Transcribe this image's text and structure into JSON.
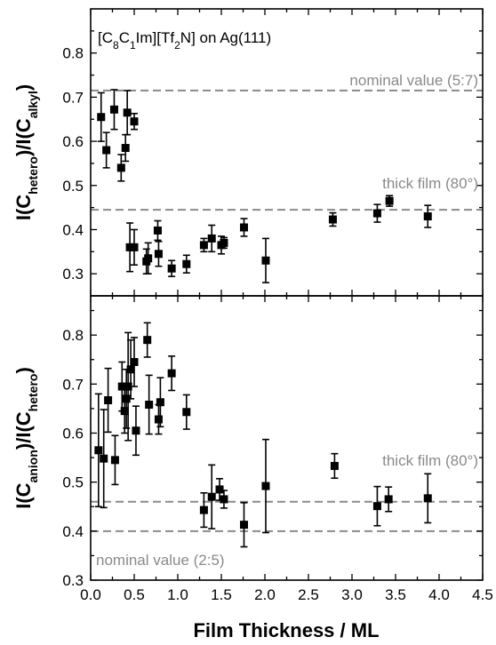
{
  "chart_data": [
    {
      "type": "scatter",
      "title": "[C8C1Im][Tf2N] on Ag(111)",
      "ylabel": {
        "parts": [
          [
            "I(C",
            false
          ],
          [
            "hetero",
            true
          ],
          [
            ")/I(C",
            false
          ],
          [
            "alkyl",
            true
          ],
          [
            ")",
            false
          ]
        ]
      },
      "xlim": [
        0,
        4.5
      ],
      "ylim": [
        0.25,
        0.9
      ],
      "yticks": [
        "0.3",
        "0.4",
        "0.5",
        "0.6",
        "0.7",
        "0.8"
      ],
      "reference_lines": [
        {
          "y": 0.715,
          "label": "nominal value (5:7)"
        },
        {
          "y": 0.445,
          "label": "thick film (80°)"
        }
      ],
      "points": [
        {
          "x": 0.12,
          "y": 0.655,
          "err": 0.055
        },
        {
          "x": 0.18,
          "y": 0.58,
          "err": 0.04
        },
        {
          "x": 0.27,
          "y": 0.672,
          "err": 0.045
        },
        {
          "x": 0.35,
          "y": 0.54,
          "err": 0.03
        },
        {
          "x": 0.4,
          "y": 0.585,
          "err": 0.03
        },
        {
          "x": 0.42,
          "y": 0.665,
          "err": 0.05
        },
        {
          "x": 0.5,
          "y": 0.645,
          "err": 0.018
        },
        {
          "x": 0.45,
          "y": 0.36,
          "err": 0.055
        },
        {
          "x": 0.5,
          "y": 0.36,
          "err": 0.04
        },
        {
          "x": 0.64,
          "y": 0.328,
          "err": 0.028
        },
        {
          "x": 0.66,
          "y": 0.335,
          "err": 0.035
        },
        {
          "x": 0.77,
          "y": 0.398,
          "err": 0.022
        },
        {
          "x": 0.78,
          "y": 0.345,
          "err": 0.028
        },
        {
          "x": 0.93,
          "y": 0.312,
          "err": 0.018
        },
        {
          "x": 1.1,
          "y": 0.322,
          "err": 0.02
        },
        {
          "x": 1.3,
          "y": 0.365,
          "err": 0.015
        },
        {
          "x": 1.39,
          "y": 0.38,
          "err": 0.03
        },
        {
          "x": 1.5,
          "y": 0.365,
          "err": 0.02
        },
        {
          "x": 1.53,
          "y": 0.37,
          "err": 0.012
        },
        {
          "x": 1.76,
          "y": 0.405,
          "err": 0.02
        },
        {
          "x": 2.01,
          "y": 0.33,
          "err": 0.05
        },
        {
          "x": 2.78,
          "y": 0.423,
          "err": 0.015
        },
        {
          "x": 3.29,
          "y": 0.437,
          "err": 0.02
        },
        {
          "x": 3.43,
          "y": 0.465,
          "err": 0.012
        },
        {
          "x": 3.87,
          "y": 0.43,
          "err": 0.025
        }
      ]
    },
    {
      "type": "scatter",
      "xlabel": "Film Thickness / ML",
      "ylabel": {
        "parts": [
          [
            "I(C",
            false
          ],
          [
            "anion",
            true
          ],
          [
            ")/I(C",
            false
          ],
          [
            "hetero",
            true
          ],
          [
            ")",
            false
          ]
        ]
      },
      "xlim": [
        0,
        4.5
      ],
      "ylim": [
        0.3,
        0.88
      ],
      "xticks": [
        "0.0",
        "0.5",
        "1.0",
        "1.5",
        "2.0",
        "2.5",
        "3.0",
        "3.5",
        "4.0",
        "4.5"
      ],
      "yticks": [
        "0.3",
        "0.4",
        "0.5",
        "0.6",
        "0.7",
        "0.8"
      ],
      "reference_lines": [
        {
          "y": 0.46,
          "label": "thick film (80°)"
        },
        {
          "y": 0.4,
          "label": "nominal value (2:5)"
        }
      ],
      "points": [
        {
          "x": 0.09,
          "y": 0.565,
          "err": 0.115
        },
        {
          "x": 0.15,
          "y": 0.548,
          "err": 0.1
        },
        {
          "x": 0.2,
          "y": 0.667,
          "err": 0.065
        },
        {
          "x": 0.28,
          "y": 0.545,
          "err": 0.05
        },
        {
          "x": 0.36,
          "y": 0.695,
          "err": 0.05
        },
        {
          "x": 0.39,
          "y": 0.645,
          "err": 0.045
        },
        {
          "x": 0.41,
          "y": 0.67,
          "err": 0.06
        },
        {
          "x": 0.43,
          "y": 0.695,
          "err": 0.11
        },
        {
          "x": 0.46,
          "y": 0.73,
          "err": 0.06
        },
        {
          "x": 0.5,
          "y": 0.745,
          "err": 0.05
        },
        {
          "x": 0.52,
          "y": 0.605,
          "err": 0.05
        },
        {
          "x": 0.65,
          "y": 0.79,
          "err": 0.035
        },
        {
          "x": 0.67,
          "y": 0.658,
          "err": 0.06
        },
        {
          "x": 0.78,
          "y": 0.628,
          "err": 0.03
        },
        {
          "x": 0.8,
          "y": 0.663,
          "err": 0.05
        },
        {
          "x": 0.93,
          "y": 0.722,
          "err": 0.035
        },
        {
          "x": 1.1,
          "y": 0.643,
          "err": 0.035
        },
        {
          "x": 1.3,
          "y": 0.443,
          "err": 0.035
        },
        {
          "x": 1.39,
          "y": 0.47,
          "err": 0.065
        },
        {
          "x": 1.48,
          "y": 0.485,
          "err": 0.022
        },
        {
          "x": 1.53,
          "y": 0.465,
          "err": 0.018
        },
        {
          "x": 1.76,
          "y": 0.413,
          "err": 0.045
        },
        {
          "x": 2.01,
          "y": 0.492,
          "err": 0.095
        },
        {
          "x": 2.8,
          "y": 0.533,
          "err": 0.025
        },
        {
          "x": 3.29,
          "y": 0.451,
          "err": 0.04
        },
        {
          "x": 3.42,
          "y": 0.465,
          "err": 0.025
        },
        {
          "x": 3.87,
          "y": 0.467,
          "err": 0.05
        }
      ]
    }
  ]
}
